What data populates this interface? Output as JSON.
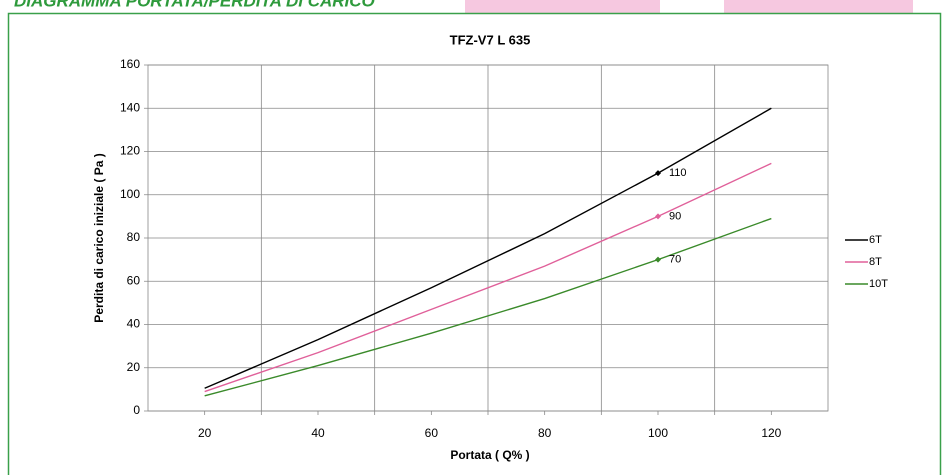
{
  "header": {
    "title": "DIAGRAMMA PORTATA/PERDITA DI CARICO"
  },
  "chart_data": {
    "type": "line",
    "title": "TFZ-V7   L 635",
    "x_label": "Portata ( Q% )",
    "y_label": "Perdita di carico iniziale ( Pa )",
    "x": [
      20,
      40,
      60,
      80,
      100,
      120
    ],
    "series": [
      {
        "name": "6T",
        "color": "#000000",
        "values": [
          10.5,
          33,
          57,
          82,
          110,
          140
        ]
      },
      {
        "name": "8T",
        "color": "#e0609a",
        "values": [
          9,
          27,
          47,
          67,
          90,
          114.5
        ]
      },
      {
        "name": "10T",
        "color": "#3a8a2a",
        "values": [
          7,
          21,
          36,
          52,
          70,
          89
        ]
      }
    ],
    "annotations": [
      {
        "series": 0,
        "x": 100,
        "y": 110
      },
      {
        "series": 1,
        "x": 100,
        "y": 90
      },
      {
        "series": 2,
        "x": 100,
        "y": 70
      }
    ],
    "xlim": [
      10,
      130
    ],
    "ylim": [
      0,
      160
    ],
    "xticks": [
      20,
      40,
      60,
      80,
      100,
      120
    ],
    "yticks": [
      0,
      20,
      40,
      60,
      80,
      100,
      120,
      140,
      160
    ],
    "x_gridlines": [
      30,
      50,
      70,
      90,
      110
    ],
    "grid": true,
    "legend": "right"
  }
}
